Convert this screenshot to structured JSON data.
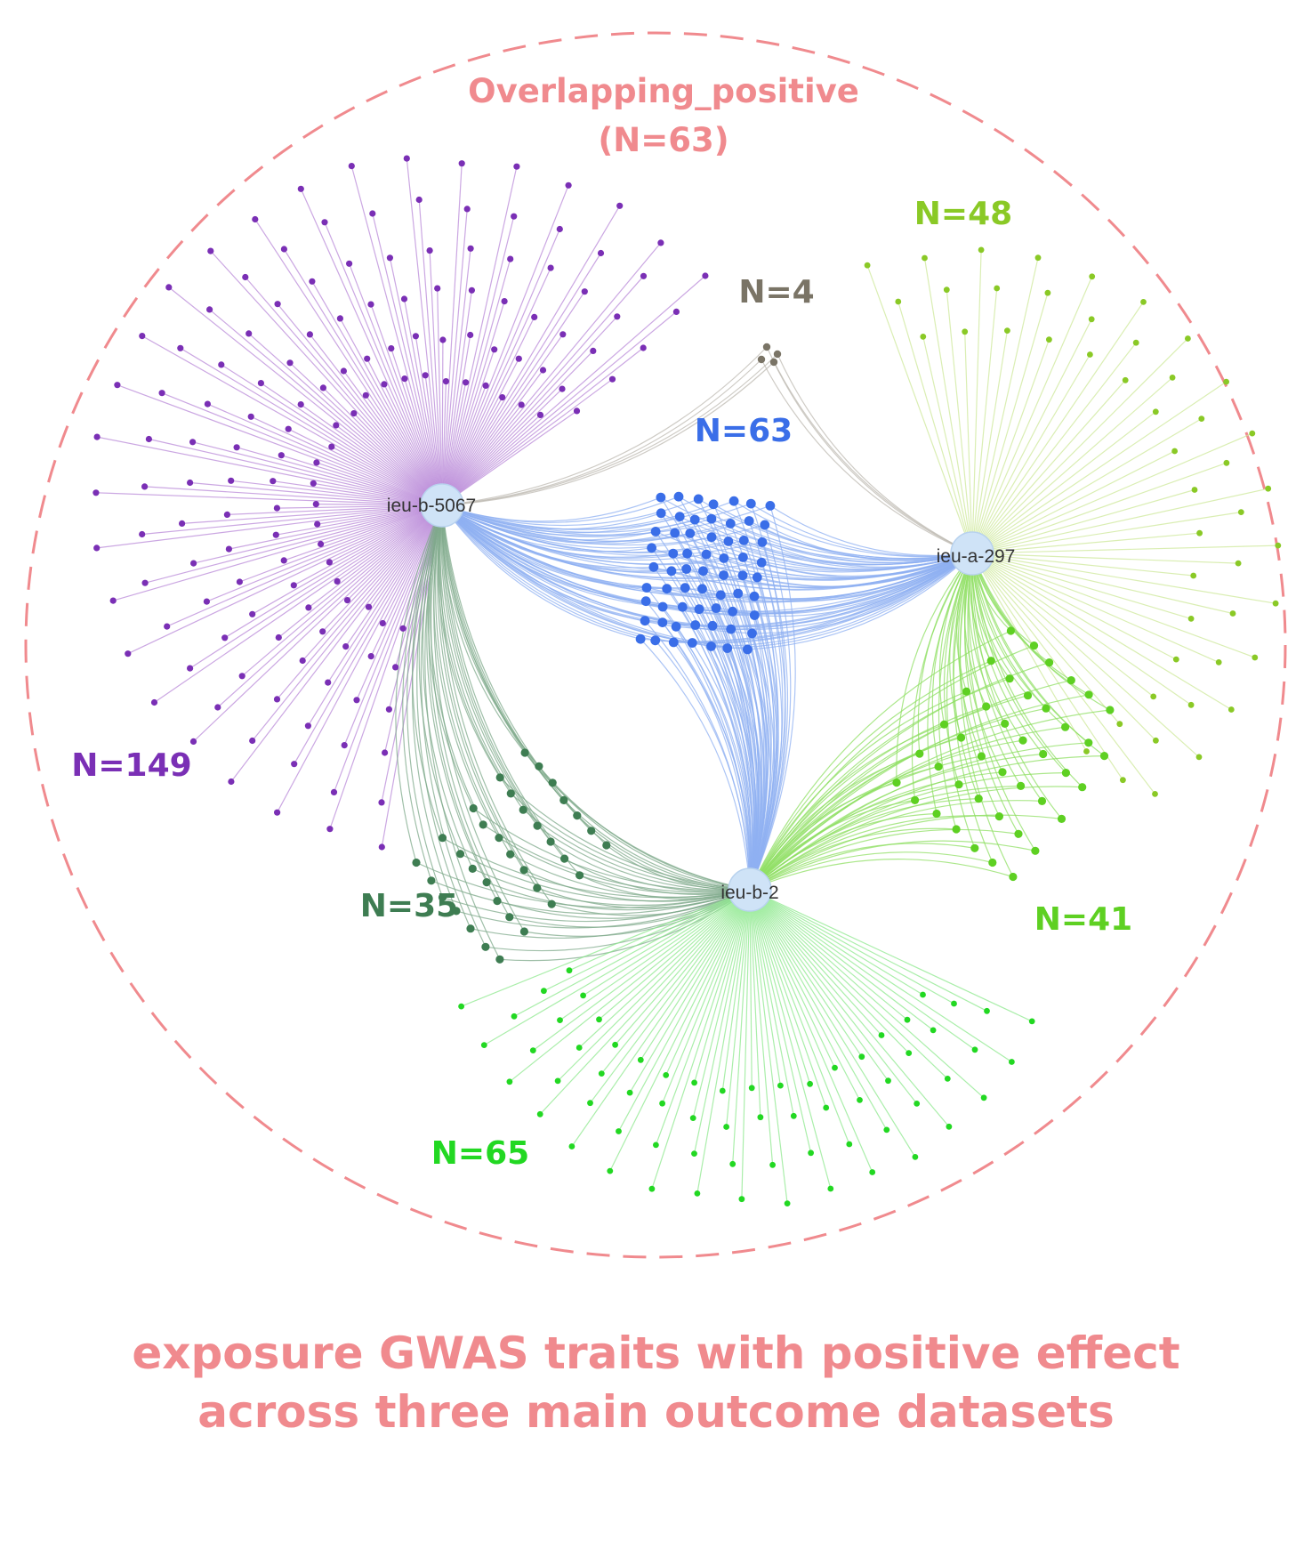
{
  "overlap": {
    "title": "Overlapping_positive",
    "count": "(N=63)",
    "color": "#f08a8e"
  },
  "hubs": [
    {
      "id": "ieu-b-5067",
      "label": "ieu-b-5067"
    },
    {
      "id": "ieu-a-297",
      "label": "ieu-a-297"
    },
    {
      "id": "ieu-b-2",
      "label": "ieu-b-2"
    }
  ],
  "groups": [
    {
      "key": "b5067_only",
      "label": "N=149",
      "count": 149,
      "color": "#7a2fb5",
      "edge_color": "#b98ad8",
      "hubs": [
        "ieu-b-5067"
      ]
    },
    {
      "key": "b5067_a297",
      "label": "N=4",
      "count": 4,
      "color": "#7a7466",
      "edge_color": "#bdbab2",
      "hubs": [
        "ieu-b-5067",
        "ieu-a-297"
      ]
    },
    {
      "key": "a297_only",
      "label": "N=48",
      "count": 48,
      "color": "#8ac926",
      "edge_color": "#cde89a",
      "hubs": [
        "ieu-a-297"
      ]
    },
    {
      "key": "all_three",
      "label": "N=63",
      "count": 63,
      "color": "#3a6ee8",
      "edge_color": "#8fb0f2",
      "hubs": [
        "ieu-b-5067",
        "ieu-a-297",
        "ieu-b-2"
      ]
    },
    {
      "key": "b5067_b2",
      "label": "N=35",
      "count": 35,
      "color": "#3e7d52",
      "edge_color": "#7fa98b",
      "hubs": [
        "ieu-b-5067",
        "ieu-b-2"
      ]
    },
    {
      "key": "a297_b2",
      "label": "N=41",
      "count": 41,
      "color": "#5ed022",
      "edge_color": "#8fdf63",
      "hubs": [
        "ieu-a-297",
        "ieu-b-2"
      ]
    },
    {
      "key": "b2_only",
      "label": "N=65",
      "count": 65,
      "color": "#22d822",
      "edge_color": "#8ee88e",
      "hubs": [
        "ieu-b-2"
      ]
    }
  ],
  "caption": "exposure GWAS traits with positive effect across three main outcome datasets"
}
